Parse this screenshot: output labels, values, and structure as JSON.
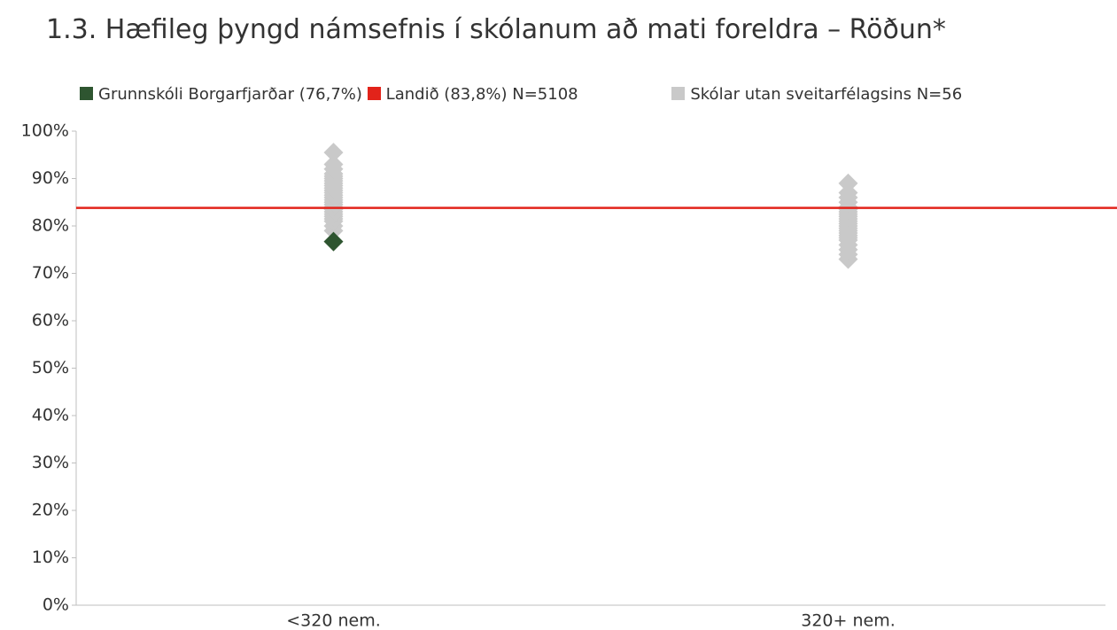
{
  "chart_data": {
    "type": "scatter",
    "title": "1.3. Hæfileg þyngd námsefnis í skólanum að mati foreldra – Röðun*",
    "categories": [
      "<320 nem.",
      "320+ nem."
    ],
    "ylim": [
      0,
      100
    ],
    "yticks": [
      {
        "value": 0,
        "label": "0%"
      },
      {
        "value": 10,
        "label": "10%"
      },
      {
        "value": 20,
        "label": "20%"
      },
      {
        "value": 30,
        "label": "30%"
      },
      {
        "value": 40,
        "label": "40%"
      },
      {
        "value": 50,
        "label": "50%"
      },
      {
        "value": 60,
        "label": "60%"
      },
      {
        "value": 70,
        "label": "70%"
      },
      {
        "value": 80,
        "label": "80%"
      },
      {
        "value": 90,
        "label": "90%"
      },
      {
        "value": 100,
        "label": "100%"
      }
    ],
    "series": [
      {
        "name": "Grunnskóli Borgarfjarðar (76,7%)",
        "color": "#2e5530",
        "style": "diamond",
        "x": [
          "<320 nem."
        ],
        "values": [
          76.7
        ]
      },
      {
        "name": "Landið (83,8%) N=5108",
        "color": "#e2231a",
        "style": "hline",
        "values": [
          83.8
        ]
      },
      {
        "name": "Skólar utan sveitarfélagsins N=56",
        "color": "#c9c9c9",
        "style": "diamond",
        "x": [
          "<320 nem.",
          "<320 nem.",
          "<320 nem.",
          "<320 nem.",
          "<320 nem.",
          "<320 nem.",
          "<320 nem.",
          "<320 nem.",
          "<320 nem.",
          "<320 nem.",
          "<320 nem.",
          "<320 nem.",
          "<320 nem.",
          "<320 nem.",
          "<320 nem.",
          "<320 nem.",
          "<320 nem.",
          "<320 nem.",
          "<320 nem.",
          "<320 nem.",
          "<320 nem.",
          "<320 nem.",
          "<320 nem.",
          "<320 nem.",
          "<320 nem.",
          "<320 nem.",
          "320+ nem.",
          "320+ nem.",
          "320+ nem.",
          "320+ nem.",
          "320+ nem.",
          "320+ nem.",
          "320+ nem.",
          "320+ nem.",
          "320+ nem.",
          "320+ nem.",
          "320+ nem.",
          "320+ nem.",
          "320+ nem.",
          "320+ nem.",
          "320+ nem.",
          "320+ nem.",
          "320+ nem.",
          "320+ nem.",
          "320+ nem.",
          "320+ nem.",
          "320+ nem.",
          "320+ nem.",
          "320+ nem."
        ],
        "values": [
          79,
          80,
          81,
          81.5,
          82,
          82.5,
          83,
          83.5,
          84,
          84.5,
          85,
          85.5,
          86,
          86.5,
          87,
          87.5,
          88,
          88.5,
          89,
          89.5,
          90,
          90.5,
          91,
          92,
          93,
          95.5,
          73,
          74,
          75,
          76,
          77,
          77.5,
          78,
          78.5,
          79,
          79.5,
          80,
          80.5,
          81,
          81.5,
          82,
          82.5,
          83,
          83.5,
          84,
          85,
          86,
          87,
          89
        ]
      }
    ]
  }
}
